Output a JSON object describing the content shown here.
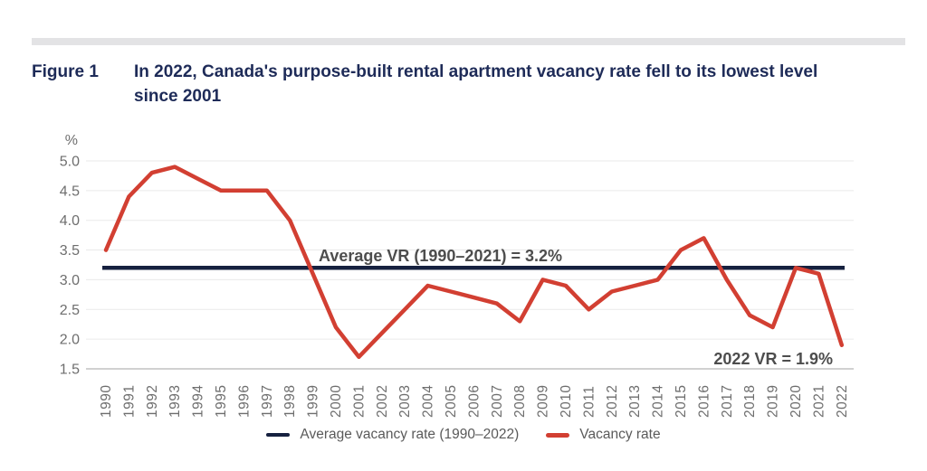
{
  "figure": {
    "label": "Figure 1",
    "title": "In 2022, Canada's purpose-built rental apartment vacancy rate fell to its lowest level since 2001"
  },
  "chart_data": {
    "type": "line",
    "ylabel": "%",
    "ylim": [
      1.5,
      5.0
    ],
    "yticks": [
      5.0,
      4.5,
      4.0,
      3.5,
      3.0,
      2.5,
      2.0,
      1.5
    ],
    "grid": true,
    "legend_position": "bottom",
    "x": [
      1990,
      1991,
      1992,
      1993,
      1994,
      1995,
      1996,
      1997,
      1998,
      1999,
      2000,
      2001,
      2002,
      2003,
      2004,
      2005,
      2006,
      2007,
      2008,
      2009,
      2010,
      2011,
      2012,
      2013,
      2014,
      2015,
      2016,
      2017,
      2018,
      2019,
      2020,
      2021,
      2022
    ],
    "series": [
      {
        "name": "Vacancy rate",
        "color": "#d23f32",
        "values": [
          3.5,
          4.4,
          4.8,
          4.9,
          4.7,
          4.5,
          4.5,
          4.5,
          4.0,
          3.1,
          2.2,
          1.7,
          2.1,
          2.5,
          2.9,
          2.8,
          2.7,
          2.6,
          2.3,
          3.0,
          2.9,
          2.5,
          2.8,
          2.9,
          3.0,
          3.5,
          3.7,
          3.0,
          2.4,
          2.2,
          3.2,
          3.1,
          1.9
        ]
      }
    ],
    "average_line": {
      "name": "Average vacancy rate (1990–2022)",
      "color": "#16213f",
      "value": 3.2
    },
    "annotations": {
      "average": "Average VR (1990–2021) = 3.2%",
      "latest": "2022 VR = 1.9%"
    }
  },
  "legend": {
    "items": [
      {
        "label": "Average vacancy rate (1990–2022)",
        "color": "#16213f"
      },
      {
        "label": "Vacancy rate",
        "color": "#d23f32"
      }
    ]
  },
  "colors": {
    "title_navy": "#1e2b58",
    "red_line": "#d23f32",
    "navy_line": "#16213f",
    "axis_text": "#6e6e6e",
    "annotation_text": "#4d4d4d",
    "gridline": "#eaeaea",
    "axis_line": "#a3a3a3",
    "top_bar": "#e3e3e5"
  }
}
